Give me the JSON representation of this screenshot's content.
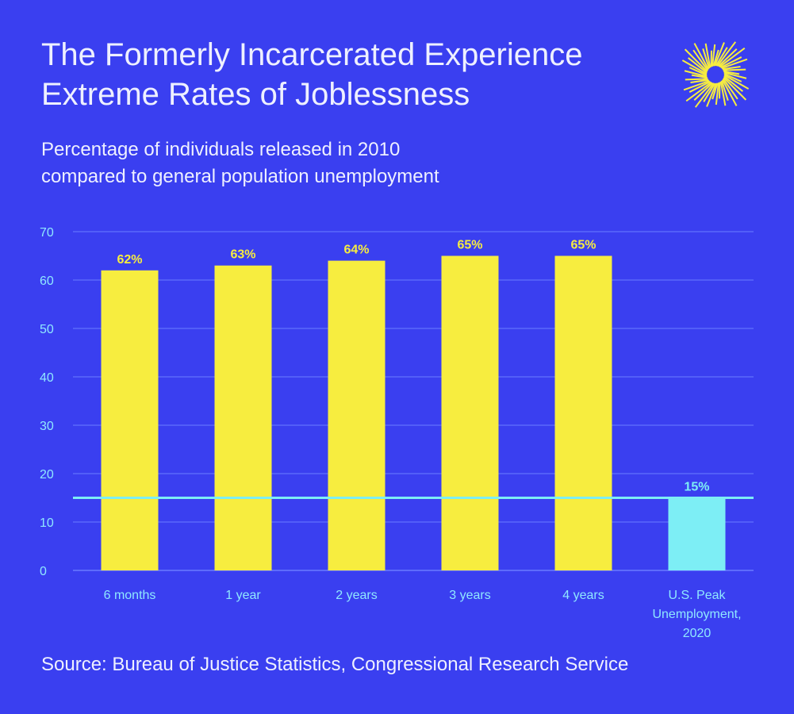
{
  "header": {
    "title_line1": "The Formerly Incarcerated Experience",
    "title_line2": "Extreme Rates of Joblessness",
    "subtitle_line1": "Percentage of individuals released in 2010",
    "subtitle_line2": "compared to general population unemployment"
  },
  "footer": {
    "source": "Source: Bureau of Justice Statistics, Congressional Research Service"
  },
  "logo": {
    "icon": "sunburst-logo-icon",
    "color": "#f7ed3f"
  },
  "colors": {
    "background": "#3a3ff0",
    "bar_primary": "#f7ed3f",
    "bar_highlight": "#7deef5",
    "axis_text": "#8fe8ff",
    "gridline": "#6a7cff",
    "label_primary": "#f7ed3f",
    "label_highlight": "#7deef5"
  },
  "chart_data": {
    "type": "bar",
    "title": "The Formerly Incarcerated Experience Extreme Rates of Joblessness",
    "subtitle": "Percentage of individuals released in 2010 compared to general population unemployment",
    "xlabel": "",
    "ylabel": "",
    "categories": [
      [
        "6 months"
      ],
      [
        "1 year"
      ],
      [
        "2 years"
      ],
      [
        "3 years"
      ],
      [
        "4 years"
      ],
      [
        "U.S. Peak",
        "Unemployment,",
        "2020"
      ]
    ],
    "values": [
      62,
      63,
      64,
      65,
      65,
      15
    ],
    "data_labels": [
      "62%",
      "63%",
      "64%",
      "65%",
      "65%",
      "15%"
    ],
    "highlight_index": 5,
    "reference_line": 15,
    "ylim": [
      0,
      70
    ],
    "yticks": [
      0,
      10,
      20,
      30,
      40,
      50,
      60,
      70
    ],
    "grid": true
  }
}
